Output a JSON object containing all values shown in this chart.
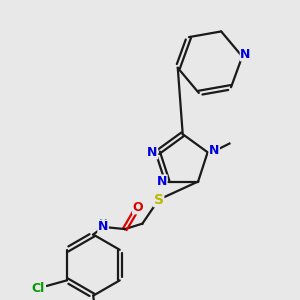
{
  "bg_color": "#e8e8e8",
  "bond_color": "#1a1a1a",
  "bond_lw": 1.6,
  "atom_colors": {
    "N": "#0000dd",
    "O": "#dd0000",
    "S": "#bbbb00",
    "Cl": "#009900",
    "C": "#1a1a1a",
    "H": "#4488aa"
  },
  "font_size": 9.0
}
